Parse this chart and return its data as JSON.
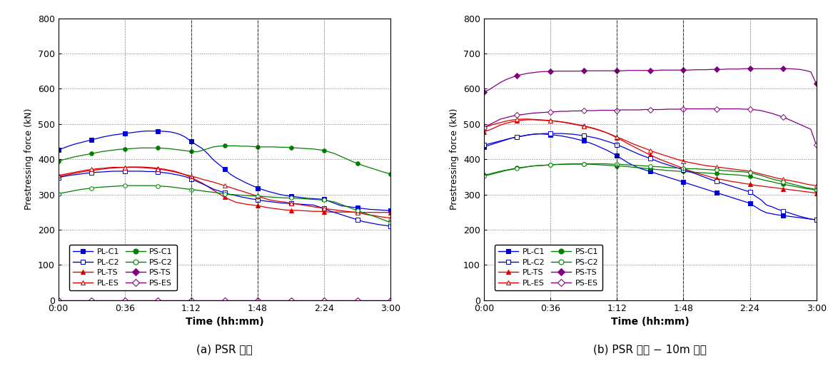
{
  "caption_a": "(a) PSR 시편",
  "caption_b": "(b) PSR 시편 − 10m 낙하",
  "ylabel": "Prestressing force (kN)",
  "xlabel": "Time (hh:mm)",
  "series_a": {
    "PL-C1": {
      "color": "#0000dd",
      "marker": "s",
      "filled": true,
      "y": [
        427,
        432,
        438,
        443,
        447,
        451,
        455,
        459,
        463,
        466,
        469,
        471,
        473,
        475,
        477,
        479,
        480,
        480,
        480,
        479,
        478,
        475,
        470,
        462,
        450,
        440,
        430,
        415,
        398,
        385,
        372,
        358,
        348,
        340,
        332,
        325,
        318,
        313,
        308,
        304,
        300,
        297,
        295,
        293,
        291,
        289,
        288,
        287,
        286,
        280,
        274,
        268,
        266,
        264,
        262,
        260,
        258,
        257,
        256,
        255,
        254
      ]
    },
    "PL-C2": {
      "color": "#0000dd",
      "marker": "s",
      "filled": false,
      "y": [
        348,
        351,
        354,
        356,
        358,
        360,
        362,
        363,
        364,
        365,
        366,
        366,
        366,
        366,
        366,
        366,
        365,
        365,
        364,
        362,
        360,
        357,
        354,
        350,
        344,
        337,
        330,
        323,
        315,
        310,
        305,
        300,
        297,
        293,
        290,
        287,
        285,
        282,
        280,
        278,
        276,
        275,
        274,
        273,
        272,
        271,
        270,
        265,
        260,
        253,
        248,
        243,
        238,
        233,
        228,
        223,
        220,
        217,
        214,
        212,
        210
      ]
    },
    "PL-TS": {
      "color": "#dd0000",
      "marker": "^",
      "filled": true,
      "y": [
        350,
        354,
        357,
        360,
        363,
        366,
        368,
        370,
        372,
        374,
        375,
        376,
        377,
        378,
        378,
        378,
        377,
        376,
        374,
        372,
        369,
        366,
        361,
        355,
        348,
        340,
        332,
        322,
        312,
        302,
        292,
        285,
        278,
        275,
        272,
        270,
        268,
        265,
        262,
        260,
        258,
        256,
        255,
        255,
        254,
        253,
        252,
        252,
        251,
        250,
        250,
        250,
        250,
        250,
        250,
        249,
        249,
        249,
        249,
        249,
        249
      ]
    },
    "PL-ES": {
      "color": "#dd0000",
      "marker": "^",
      "filled": false,
      "y": [
        354,
        357,
        360,
        363,
        366,
        369,
        371,
        373,
        374,
        376,
        377,
        377,
        377,
        377,
        377,
        376,
        375,
        374,
        372,
        370,
        367,
        364,
        360,
        356,
        352,
        348,
        343,
        339,
        335,
        330,
        325,
        320,
        315,
        310,
        305,
        300,
        295,
        290,
        285,
        282,
        280,
        278,
        275,
        273,
        270,
        268,
        265,
        263,
        260,
        258,
        256,
        254,
        252,
        250,
        248,
        245,
        242,
        240,
        237,
        235,
        233
      ]
    },
    "PS-C1": {
      "color": "#008000",
      "marker": "o",
      "filled": true,
      "y": [
        395,
        399,
        403,
        407,
        410,
        413,
        416,
        419,
        422,
        424,
        426,
        428,
        429,
        430,
        431,
        432,
        432,
        432,
        432,
        431,
        430,
        428,
        426,
        424,
        422,
        421,
        425,
        430,
        435,
        437,
        438,
        438,
        438,
        437,
        437,
        436,
        435,
        435,
        435,
        435,
        434,
        434,
        433,
        432,
        431,
        430,
        429,
        427,
        425,
        420,
        415,
        408,
        401,
        394,
        388,
        382,
        377,
        372,
        367,
        362,
        358
      ]
    },
    "PS-C2": {
      "color": "#008000",
      "marker": "o",
      "filled": false,
      "y": [
        302,
        305,
        308,
        311,
        314,
        316,
        318,
        320,
        321,
        322,
        323,
        324,
        325,
        325,
        325,
        325,
        325,
        325,
        324,
        323,
        322,
        320,
        318,
        316,
        314,
        312,
        310,
        308,
        306,
        304,
        302,
        300,
        299,
        298,
        297,
        296,
        295,
        294,
        293,
        292,
        291,
        290,
        290,
        289,
        288,
        287,
        286,
        285,
        284,
        281,
        278,
        272,
        266,
        260,
        254,
        248,
        243,
        238,
        232,
        226,
        220
      ]
    },
    "PS-TS": {
      "color": "#800080",
      "marker": "D",
      "filled": true,
      "y": [
        0,
        0,
        0,
        0,
        0,
        0,
        0,
        0,
        0,
        0,
        0,
        0,
        0,
        0,
        0,
        0,
        0,
        0,
        0,
        0,
        0,
        0,
        0,
        0,
        0,
        0,
        0,
        0,
        0,
        0,
        0,
        0,
        0,
        0,
        0,
        0,
        0,
        0,
        0,
        0,
        0,
        0,
        0,
        0,
        0,
        0,
        0,
        0,
        0,
        0,
        0,
        0,
        0,
        0,
        0,
        0,
        0,
        0,
        0,
        0,
        0
      ]
    },
    "PS-ES": {
      "color": "#800080",
      "marker": "D",
      "filled": false,
      "y": [
        0,
        0,
        0,
        0,
        0,
        0,
        0,
        0,
        0,
        0,
        0,
        0,
        0,
        0,
        0,
        0,
        0,
        0,
        0,
        0,
        0,
        0,
        0,
        0,
        0,
        0,
        0,
        0,
        0,
        0,
        0,
        0,
        0,
        0,
        0,
        0,
        0,
        0,
        0,
        0,
        0,
        0,
        0,
        0,
        0,
        0,
        0,
        0,
        0,
        0,
        0,
        0,
        0,
        0,
        0,
        0,
        0,
        0,
        0,
        0,
        0
      ]
    }
  },
  "series_b": {
    "PL-C1": {
      "color": "#0000dd",
      "marker": "s",
      "filled": true,
      "y": [
        435,
        440,
        445,
        450,
        455,
        460,
        463,
        466,
        469,
        471,
        472,
        471,
        470,
        468,
        466,
        463,
        460,
        456,
        452,
        447,
        441,
        434,
        427,
        419,
        410,
        400,
        390,
        382,
        375,
        370,
        365,
        360,
        355,
        350,
        345,
        340,
        335,
        330,
        325,
        320,
        315,
        310,
        305,
        300,
        295,
        290,
        285,
        280,
        275,
        265,
        255,
        248,
        245,
        242,
        240,
        238,
        236,
        234,
        232,
        230,
        228
      ]
    },
    "PL-C2": {
      "color": "#0000dd",
      "marker": "s",
      "filled": false,
      "y": [
        440,
        444,
        448,
        452,
        456,
        460,
        463,
        466,
        469,
        471,
        472,
        473,
        473,
        473,
        473,
        472,
        471,
        469,
        467,
        464,
        461,
        457,
        452,
        447,
        441,
        435,
        428,
        421,
        414,
        408,
        402,
        396,
        390,
        385,
        380,
        375,
        370,
        365,
        360,
        354,
        348,
        342,
        337,
        332,
        327,
        322,
        317,
        312,
        307,
        295,
        285,
        270,
        265,
        258,
        253,
        248,
        243,
        238,
        234,
        230,
        228
      ]
    },
    "PL-TS": {
      "color": "#dd0000",
      "marker": "^",
      "filled": true,
      "y": [
        478,
        483,
        490,
        497,
        502,
        506,
        509,
        511,
        512,
        512,
        511,
        510,
        509,
        508,
        506,
        504,
        501,
        498,
        495,
        491,
        487,
        482,
        476,
        469,
        461,
        453,
        444,
        436,
        428,
        420,
        412,
        405,
        398,
        392,
        386,
        380,
        374,
        368,
        363,
        358,
        354,
        349,
        345,
        342,
        339,
        336,
        334,
        331,
        329,
        326,
        324,
        322,
        320,
        318,
        316,
        314,
        312,
        310,
        308,
        306,
        304
      ]
    },
    "PL-ES": {
      "color": "#dd0000",
      "marker": "^",
      "filled": false,
      "y": [
        490,
        495,
        500,
        504,
        508,
        511,
        513,
        514,
        514,
        513,
        512,
        511,
        510,
        508,
        506,
        503,
        500,
        497,
        494,
        490,
        486,
        481,
        476,
        470,
        463,
        457,
        450,
        443,
        437,
        431,
        425,
        419,
        414,
        409,
        404,
        399,
        395,
        391,
        388,
        385,
        382,
        380,
        378,
        376,
        374,
        372,
        370,
        368,
        366,
        362,
        358,
        354,
        350,
        346,
        343,
        340,
        337,
        334,
        330,
        327,
        325
      ]
    },
    "PS-C1": {
      "color": "#008000",
      "marker": "o",
      "filled": true,
      "y": [
        355,
        358,
        362,
        366,
        369,
        372,
        375,
        377,
        379,
        381,
        382,
        383,
        384,
        385,
        385,
        386,
        386,
        386,
        386,
        386,
        385,
        384,
        383,
        382,
        381,
        380,
        379,
        377,
        376,
        374,
        373,
        371,
        370,
        368,
        367,
        366,
        365,
        364,
        363,
        362,
        361,
        360,
        359,
        358,
        357,
        356,
        355,
        353,
        351,
        347,
        343,
        339,
        336,
        332,
        329,
        326,
        323,
        320,
        317,
        315,
        312
      ]
    },
    "PS-C2": {
      "color": "#008000",
      "marker": "o",
      "filled": false,
      "y": [
        352,
        356,
        360,
        364,
        368,
        371,
        374,
        376,
        379,
        381,
        382,
        383,
        384,
        385,
        386,
        386,
        387,
        387,
        387,
        387,
        387,
        387,
        387,
        386,
        386,
        385,
        384,
        383,
        382,
        381,
        380,
        379,
        378,
        377,
        376,
        375,
        374,
        373,
        373,
        372,
        371,
        370,
        369,
        368,
        367,
        366,
        365,
        364,
        362,
        358,
        354,
        349,
        344,
        340,
        336,
        332,
        328,
        324,
        320,
        317,
        314
      ]
    },
    "PS-TS": {
      "color": "#800080",
      "marker": "D",
      "filled": true,
      "y": [
        590,
        598,
        608,
        618,
        626,
        632,
        637,
        641,
        644,
        646,
        648,
        649,
        649,
        650,
        650,
        650,
        650,
        650,
        651,
        651,
        651,
        651,
        651,
        651,
        651,
        651,
        652,
        652,
        652,
        652,
        652,
        652,
        653,
        653,
        653,
        653,
        653,
        653,
        654,
        654,
        654,
        655,
        655,
        655,
        656,
        656,
        656,
        657,
        657,
        657,
        657,
        657,
        657,
        657,
        657,
        657,
        656,
        655,
        652,
        648,
        614
      ]
    },
    "PS-ES": {
      "color": "#800080",
      "marker": "D",
      "filled": false,
      "y": [
        490,
        498,
        506,
        514,
        518,
        522,
        525,
        527,
        529,
        531,
        532,
        533,
        534,
        535,
        536,
        536,
        537,
        537,
        538,
        538,
        538,
        539,
        539,
        539,
        539,
        540,
        540,
        540,
        540,
        541,
        541,
        541,
        541,
        542,
        542,
        542,
        543,
        543,
        543,
        543,
        543,
        543,
        543,
        543,
        543,
        543,
        543,
        542,
        542,
        540,
        538,
        534,
        530,
        525,
        519,
        513,
        506,
        499,
        492,
        485,
        440
      ]
    }
  },
  "legend_left_col": [
    "PL-C1",
    "PL-TS",
    "PS-C1",
    "PS-TS"
  ],
  "legend_right_col": [
    "PL-C2",
    "PL-ES",
    "PS-C2",
    "PS-ES"
  ]
}
